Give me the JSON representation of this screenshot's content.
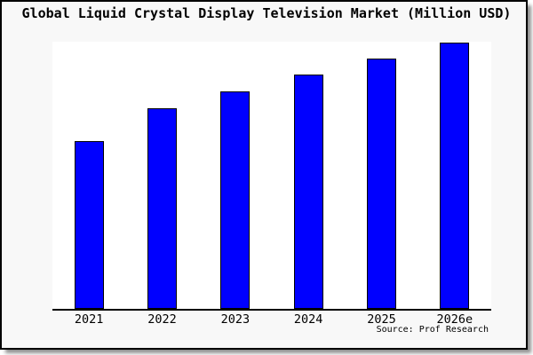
{
  "figure": {
    "title": "Global Liquid Crystal Display Television Market (Million USD)",
    "source": "Source: Prof Research"
  },
  "chart_data": {
    "type": "bar",
    "title": "Global Liquid Crystal Display Television Market (Million USD)",
    "categories": [
      "2021",
      "2022",
      "2023",
      "2024",
      "2025",
      "2026e"
    ],
    "values": [
      62.7,
      75.2,
      81.5,
      87.8,
      93.8,
      100
    ],
    "value_note": "no y-axis labels shown; values estimated from bar heights, indexed to 2026e = 100",
    "xlabel": "",
    "ylabel": "",
    "ylim": [
      0,
      101
    ],
    "y_axis_visible": false,
    "gridlines": false,
    "legend": "none",
    "colors": {
      "bar_fill": "#0000ff",
      "bar_edge": "#000000",
      "figure_background": "#f8f8f8",
      "plot_background": "#ffffff",
      "border": "#000000",
      "text": "#000000"
    }
  }
}
